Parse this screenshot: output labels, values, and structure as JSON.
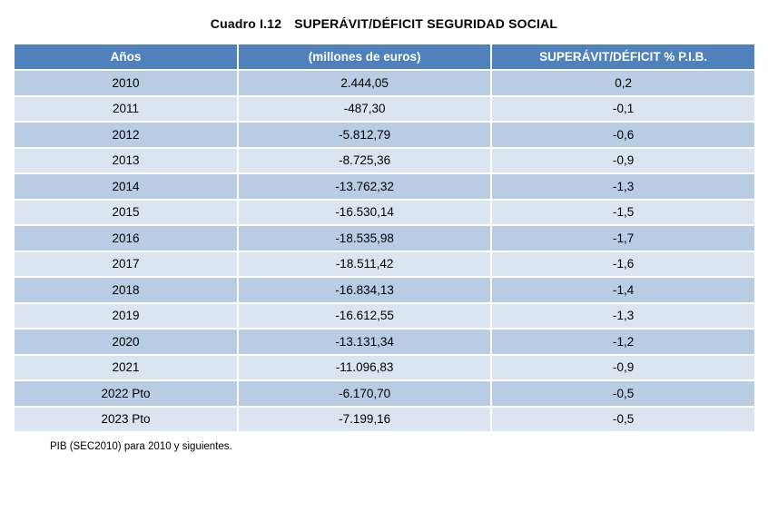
{
  "header": {
    "label": "Cuadro I.12",
    "title": "SUPERÁVIT/DÉFICIT SEGURIDAD SOCIAL"
  },
  "table": {
    "columns": [
      "Años",
      "(millones de euros)",
      "SUPERÁVIT/DÉFICIT % P.I.B."
    ],
    "rows": [
      [
        "2010",
        "2.444,05",
        "0,2"
      ],
      [
        "2011",
        "-487,30",
        "-0,1"
      ],
      [
        "2012",
        "-5.812,79",
        "-0,6"
      ],
      [
        "2013",
        "-8.725,36",
        "-0,9"
      ],
      [
        "2014",
        "-13.762,32",
        "-1,3"
      ],
      [
        "2015",
        "-16.530,14",
        "-1,5"
      ],
      [
        "2016",
        "-18.535,98",
        "-1,7"
      ],
      [
        "2017",
        "-18.511,42",
        "-1,6"
      ],
      [
        "2018",
        "-16.834,13",
        "-1,4"
      ],
      [
        "2019",
        "-16.612,55",
        "-1,3"
      ],
      [
        "2020",
        "-13.131,34",
        "-1,2"
      ],
      [
        "2021",
        "-11.096,83",
        "-0,9"
      ],
      [
        "2022 Pto",
        "-6.170,70",
        "-0,5"
      ],
      [
        "2023 Pto",
        "-7.199,16",
        "-0,5"
      ]
    ]
  },
  "footnote": "PIB (SEC2010) para 2010 y siguientes.",
  "colors": {
    "header_bg": "#4F81BD",
    "row_dark": "#B8CCE4",
    "row_light": "#DBE5F1"
  }
}
